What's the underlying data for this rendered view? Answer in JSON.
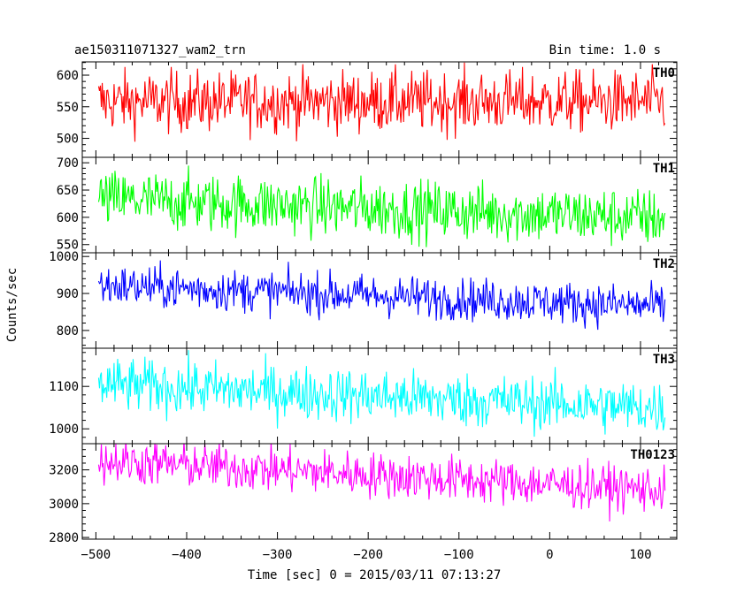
{
  "header": {
    "title": "ae150311071327_wam2_trn",
    "bin_time": "Bin time: 1.0 s"
  },
  "chart_data": {
    "type": "line",
    "xlabel": "Time [sec] 0 = 2015/03/11 07:13:27",
    "ylabel": "Counts/sec",
    "xlim": [
      -515,
      140
    ],
    "xticks": [
      -500,
      -400,
      -300,
      -200,
      -100,
      0,
      100
    ],
    "x_start": -497,
    "x_end": 127,
    "x_step": 1,
    "grid": false,
    "panels": [
      {
        "name": "TH0",
        "color": "#ff0000",
        "ylim": [
          470,
          621
        ],
        "yticks": [
          500,
          550,
          600
        ],
        "trend": {
          "x": [
            -497,
            127
          ],
          "y": [
            558,
            558
          ]
        },
        "noise_amplitude": 34
      },
      {
        "name": "TH1",
        "color": "#00ff00",
        "ylim": [
          535,
          710
        ],
        "yticks": [
          550,
          600,
          650,
          700
        ],
        "trend": {
          "x": [
            -497,
            127
          ],
          "y": [
            633,
            598
          ]
        },
        "noise_amplitude": 38
      },
      {
        "name": "TH2",
        "color": "#0000ff",
        "ylim": [
          752,
          1010
        ],
        "yticks": [
          800,
          900,
          1000
        ],
        "trend": {
          "x": [
            -497,
            127
          ],
          "y": [
            922,
            865
          ]
        },
        "noise_amplitude": 40
      },
      {
        "name": "TH3",
        "color": "#00ffff",
        "ylim": [
          965,
          1190
        ],
        "yticks": [
          1000,
          1100
        ],
        "trend": {
          "x": [
            -497,
            127
          ],
          "y": [
            1105,
            1048
          ]
        },
        "noise_amplitude": 45
      },
      {
        "name": "TH0123",
        "color": "#ff00ff",
        "ylim": [
          2790,
          3355
        ],
        "yticks": [
          2800,
          3000,
          3200
        ],
        "trend": {
          "x": [
            -497,
            127
          ],
          "y": [
            3255,
            3080
          ]
        },
        "noise_amplitude": 95
      }
    ]
  }
}
